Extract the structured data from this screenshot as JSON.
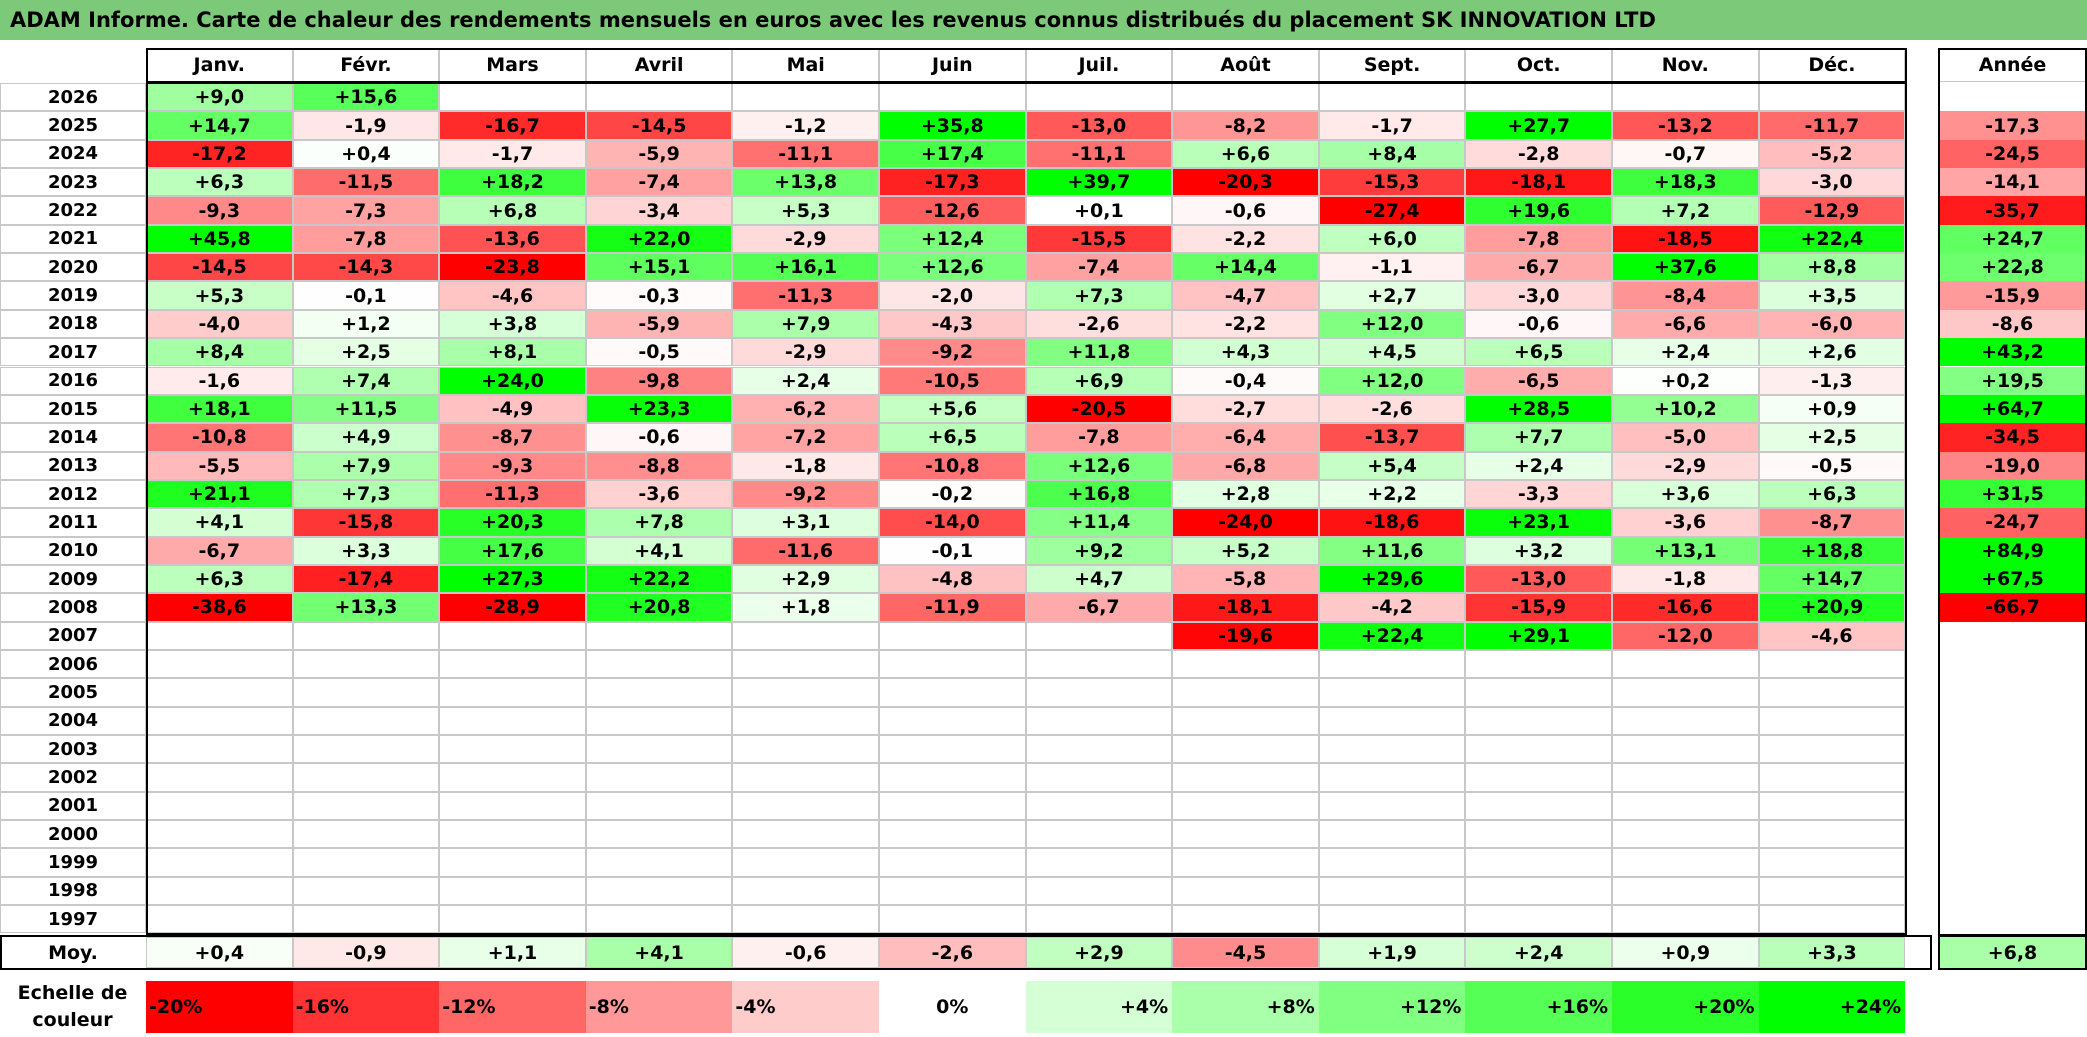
{
  "title": "ADAM Informe. Carte de chaleur des rendements mensuels en euros avec les revenus connus distribués du placement SK INNOVATION LTD",
  "colors": {
    "title_bar": "#7dc97a",
    "negative_max": "#ff0000",
    "positive_max": "#00ff00",
    "neutral": "#ffffff",
    "grid": "#c8c8c8"
  },
  "chart_data": {
    "type": "heatmap",
    "months": [
      "Janv.",
      "Févr.",
      "Mars",
      "Avril",
      "Mai",
      "Juin",
      "Juil.",
      "Août",
      "Sept.",
      "Oct.",
      "Nov.",
      "Déc."
    ],
    "year_column_label": "Année",
    "average_row_label": "Moy.",
    "years": [
      "2026",
      "2025",
      "2024",
      "2023",
      "2022",
      "2021",
      "2020",
      "2019",
      "2018",
      "2017",
      "2016",
      "2015",
      "2014",
      "2013",
      "2012",
      "2011",
      "2010",
      "2009",
      "2008",
      "2007",
      "2006",
      "2005",
      "2004",
      "2003",
      "2002",
      "2001",
      "2000",
      "1999",
      "1998",
      "1997"
    ],
    "values": [
      [
        "+9,0",
        "+15,6",
        "",
        "",
        "",
        "",
        "",
        "",
        "",
        "",
        "",
        ""
      ],
      [
        "+14,7",
        "-1,9",
        "-16,7",
        "-14,5",
        "-1,2",
        "+35,8",
        "-13,0",
        "-8,2",
        "-1,7",
        "+27,7",
        "-13,2",
        "-11,7"
      ],
      [
        "-17,2",
        "+0,4",
        "-1,7",
        "-5,9",
        "-11,1",
        "+17,4",
        "-11,1",
        "+6,6",
        "+8,4",
        "-2,8",
        "-0,7",
        "-5,2"
      ],
      [
        "+6,3",
        "-11,5",
        "+18,2",
        "-7,4",
        "+13,8",
        "-17,3",
        "+39,7",
        "-20,3",
        "-15,3",
        "-18,1",
        "+18,3",
        "-3,0"
      ],
      [
        "-9,3",
        "-7,3",
        "+6,8",
        "-3,4",
        "+5,3",
        "-12,6",
        "+0,1",
        "-0,6",
        "-27,4",
        "+19,6",
        "+7,2",
        "-12,9"
      ],
      [
        "+45,8",
        "-7,8",
        "-13,6",
        "+22,0",
        "-2,9",
        "+12,4",
        "-15,5",
        "-2,2",
        "+6,0",
        "-7,8",
        "-18,5",
        "+22,4"
      ],
      [
        "-14,5",
        "-14,3",
        "-23,8",
        "+15,1",
        "+16,1",
        "+12,6",
        "-7,4",
        "+14,4",
        "-1,1",
        "-6,7",
        "+37,6",
        "+8,8"
      ],
      [
        "+5,3",
        "-0,1",
        "-4,6",
        "-0,3",
        "-11,3",
        "-2,0",
        "+7,3",
        "-4,7",
        "+2,7",
        "-3,0",
        "-8,4",
        "+3,5"
      ],
      [
        "-4,0",
        "+1,2",
        "+3,8",
        "-5,9",
        "+7,9",
        "-4,3",
        "-2,6",
        "-2,2",
        "+12,0",
        "-0,6",
        "-6,6",
        "-6,0"
      ],
      [
        "+8,4",
        "+2,5",
        "+8,1",
        "-0,5",
        "-2,9",
        "-9,2",
        "+11,8",
        "+4,3",
        "+4,5",
        "+6,5",
        "+2,4",
        "+2,6"
      ],
      [
        "-1,6",
        "+7,4",
        "+24,0",
        "-9,8",
        "+2,4",
        "-10,5",
        "+6,9",
        "-0,4",
        "+12,0",
        "-6,5",
        "+0,2",
        "-1,3"
      ],
      [
        "+18,1",
        "+11,5",
        "-4,9",
        "+23,3",
        "-6,2",
        "+5,6",
        "-20,5",
        "-2,7",
        "-2,6",
        "+28,5",
        "+10,2",
        "+0,9"
      ],
      [
        "-10,8",
        "+4,9",
        "-8,7",
        "-0,6",
        "-7,2",
        "+6,5",
        "-7,8",
        "-6,4",
        "-13,7",
        "+7,7",
        "-5,0",
        "+2,5"
      ],
      [
        "-5,5",
        "+7,9",
        "-9,3",
        "-8,8",
        "-1,8",
        "-10,8",
        "+12,6",
        "-6,8",
        "+5,4",
        "+2,4",
        "-2,9",
        "-0,5"
      ],
      [
        "+21,1",
        "+7,3",
        "-11,3",
        "-3,6",
        "-9,2",
        "-0,2",
        "+16,8",
        "+2,8",
        "+2,2",
        "-3,3",
        "+3,6",
        "+6,3"
      ],
      [
        "+4,1",
        "-15,8",
        "+20,3",
        "+7,8",
        "+3,1",
        "-14,0",
        "+11,4",
        "-24,0",
        "-18,6",
        "+23,1",
        "-3,6",
        "-8,7"
      ],
      [
        "-6,7",
        "+3,3",
        "+17,6",
        "+4,1",
        "-11,6",
        "-0,1",
        "+9,2",
        "+5,2",
        "+11,6",
        "+3,2",
        "+13,1",
        "+18,8"
      ],
      [
        "+6,3",
        "-17,4",
        "+27,3",
        "+22,2",
        "+2,9",
        "-4,8",
        "+4,7",
        "-5,8",
        "+29,6",
        "-13,0",
        "-1,8",
        "+14,7"
      ],
      [
        "-38,6",
        "+13,3",
        "-28,9",
        "+20,8",
        "+1,8",
        "-11,9",
        "-6,7",
        "-18,1",
        "-4,2",
        "-15,9",
        "-16,6",
        "+20,9"
      ],
      [
        "",
        "",
        "",
        "",
        "",
        "",
        "",
        "-19,6",
        "+22,4",
        "+29,1",
        "-12,0",
        "-4,6"
      ],
      [
        "",
        "",
        "",
        "",
        "",
        "",
        "",
        "",
        "",
        "",
        "",
        ""
      ],
      [
        "",
        "",
        "",
        "",
        "",
        "",
        "",
        "",
        "",
        "",
        "",
        ""
      ],
      [
        "",
        "",
        "",
        "",
        "",
        "",
        "",
        "",
        "",
        "",
        "",
        ""
      ],
      [
        "",
        "",
        "",
        "",
        "",
        "",
        "",
        "",
        "",
        "",
        "",
        ""
      ],
      [
        "",
        "",
        "",
        "",
        "",
        "",
        "",
        "",
        "",
        "",
        "",
        ""
      ],
      [
        "",
        "",
        "",
        "",
        "",
        "",
        "",
        "",
        "",
        "",
        "",
        ""
      ],
      [
        "",
        "",
        "",
        "",
        "",
        "",
        "",
        "",
        "",
        "",
        "",
        ""
      ],
      [
        "",
        "",
        "",
        "",
        "",
        "",
        "",
        "",
        "",
        "",
        "",
        ""
      ],
      [
        "",
        "",
        "",
        "",
        "",
        "",
        "",
        "",
        "",
        "",
        "",
        ""
      ],
      [
        "",
        "",
        "",
        "",
        "",
        "",
        "",
        "",
        "",
        "",
        "",
        ""
      ]
    ],
    "annual": [
      "",
      "-17,3",
      "-24,5",
      "-14,1",
      "-35,7",
      "+24,7",
      "+22,8",
      "-15,9",
      "-8,6",
      "+43,2",
      "+19,5",
      "+64,7",
      "-34,5",
      "-19,0",
      "+31,5",
      "-24,7",
      "+84,9",
      "+67,5",
      "-66,7",
      "",
      "",
      "",
      "",
      "",
      "",
      "",
      "",
      "",
      "",
      ""
    ],
    "monthly_average": [
      "+0,4",
      "-0,9",
      "+1,1",
      "+4,1",
      "-0,6",
      "-2,6",
      "+2,9",
      "-4,5",
      "+1,9",
      "+2,4",
      "+0,9",
      "+3,3"
    ],
    "overall_average": "+6,8",
    "color_scale": {
      "label": "Echelle de\ncouleur",
      "steps": [
        "-20%",
        "-16%",
        "-12%",
        "-8%",
        "-4%",
        "0%",
        "+4%",
        "+8%",
        "+12%",
        "+16%",
        "+20%",
        "+24%"
      ],
      "step_values": [
        -20,
        -16,
        -12,
        -8,
        -4,
        0,
        4,
        8,
        12,
        16,
        20,
        24
      ]
    }
  }
}
